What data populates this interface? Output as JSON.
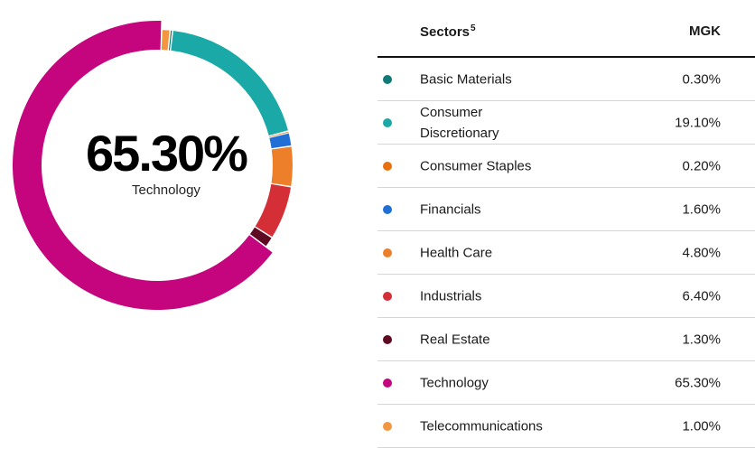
{
  "chart_data": {
    "type": "pie",
    "variant": "donut",
    "highlighted": {
      "value": "65.30%",
      "label": "Technology"
    },
    "column_headers": {
      "sector": "Sectors",
      "sector_footnote": "5",
      "fund": "MGK"
    },
    "slices": [
      {
        "name": "Basic Materials",
        "value": 0.3,
        "display": "0.30%",
        "color": "#0f7a78"
      },
      {
        "name": "Consumer Discretionary",
        "value": 19.1,
        "display": "19.10%",
        "color": "#1aa9a6"
      },
      {
        "name": "Consumer Staples",
        "value": 0.2,
        "display": "0.20%",
        "color": "#e8700f"
      },
      {
        "name": "Financials",
        "value": 1.6,
        "display": "1.60%",
        "color": "#1f6fd6"
      },
      {
        "name": "Health Care",
        "value": 4.8,
        "display": "4.80%",
        "color": "#ee7f2a"
      },
      {
        "name": "Industrials",
        "value": 6.4,
        "display": "6.40%",
        "color": "#d42e36"
      },
      {
        "name": "Real Estate",
        "value": 1.3,
        "display": "1.30%",
        "color": "#5e0a22"
      },
      {
        "name": "Technology",
        "value": 65.3,
        "display": "65.30%",
        "color": "#c4057d"
      },
      {
        "name": "Telecommunications",
        "value": 1.0,
        "display": "1.00%",
        "color": "#f29640"
      }
    ]
  }
}
